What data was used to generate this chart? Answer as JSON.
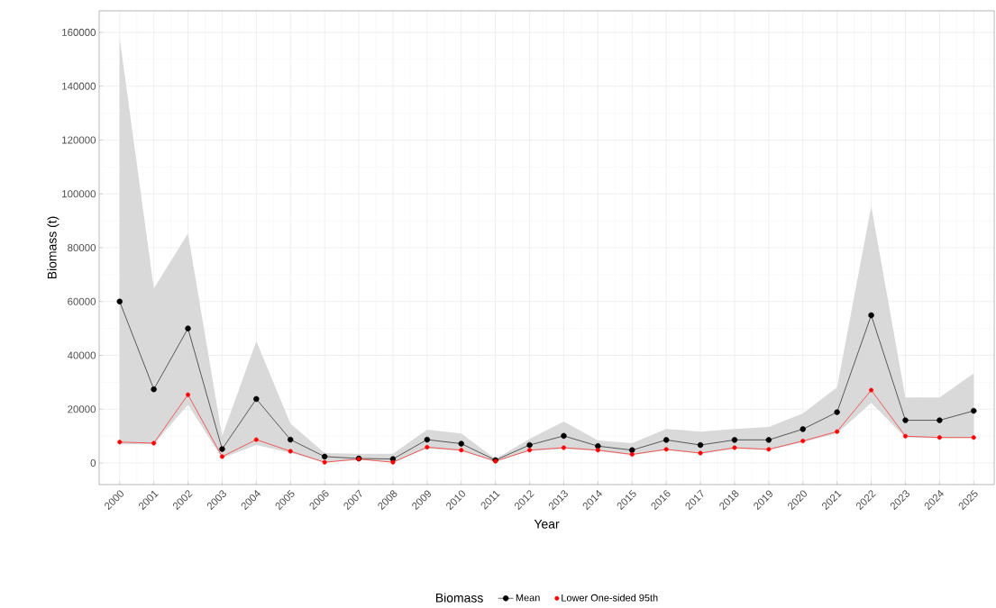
{
  "chart_data": {
    "type": "line",
    "xlabel": "Year",
    "ylabel": "Biomass (t)",
    "legend_title": "Biomass",
    "categories": [
      "2000",
      "2001",
      "2002",
      "2003",
      "2004",
      "2005",
      "2006",
      "2007",
      "2008",
      "2009",
      "2010",
      "2011",
      "2012",
      "2013",
      "2014",
      "2015",
      "2016",
      "2017",
      "2018",
      "2019",
      "2020",
      "2021",
      "2022",
      "2023",
      "2024",
      "2025"
    ],
    "series": [
      {
        "name": "Mean",
        "color": "#000000",
        "values": [
          60000,
          27400,
          50000,
          5200,
          23800,
          8700,
          2400,
          1700,
          1500,
          8700,
          7200,
          1100,
          6700,
          10100,
          6300,
          4800,
          8600,
          6700,
          8600,
          8600,
          12600,
          18900,
          54900,
          15900,
          15900,
          19400
        ],
        "lower": [
          7000,
          7000,
          21700,
          1800,
          6700,
          3800,
          200,
          1200,
          200,
          5500,
          4500,
          600,
          4500,
          5300,
          4500,
          3000,
          4800,
          3500,
          5300,
          4800,
          7800,
          11000,
          22400,
          9500,
          9200,
          9200
        ],
        "upper": [
          158000,
          64900,
          85300,
          10000,
          45300,
          14700,
          3700,
          3500,
          3500,
          12400,
          11000,
          1500,
          9000,
          15400,
          8400,
          7400,
          12700,
          11700,
          12700,
          13400,
          18400,
          28100,
          95400,
          24400,
          24400,
          33300
        ]
      },
      {
        "name": "Lower One-sided 95th",
        "color": "#ff0000",
        "values": [
          7800,
          7400,
          25400,
          2400,
          8700,
          4400,
          300,
          1500,
          300,
          5900,
          4800,
          700,
          4800,
          5700,
          4800,
          3200,
          5100,
          3700,
          5700,
          5100,
          8200,
          11700,
          27100,
          10000,
          9500,
          9500
        ]
      }
    ],
    "ylim": [
      -8000,
      168000
    ],
    "yticks": [
      0,
      20000,
      40000,
      60000,
      80000,
      100000,
      120000,
      140000,
      160000
    ],
    "grid": true,
    "legend": "bottom",
    "marker": "circle",
    "line_style": "solid"
  }
}
